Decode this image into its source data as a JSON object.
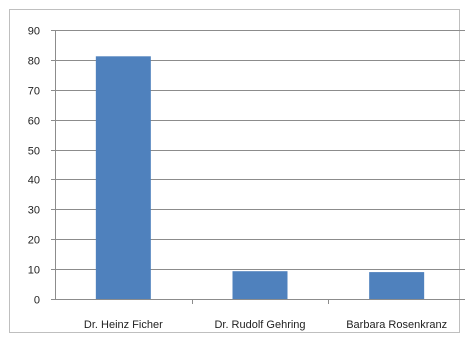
{
  "chart_data": {
    "type": "bar",
    "categories": [
      "Dr. Heinz Ficher",
      "Dr. Rudolf Gehring",
      "Barbara Rosenkranz"
    ],
    "series": [
      {
        "values": [
          81.2,
          9.3,
          9.0
        ]
      }
    ],
    "title": "",
    "xlabel": "",
    "ylabel": "",
    "ylim": [
      0,
      90
    ],
    "yticks": [
      "0",
      "10",
      "20",
      "30",
      "40",
      "50",
      "60",
      "70",
      "80",
      "90"
    ],
    "grid": true,
    "legend": "none",
    "bar_color": "#4f81bd",
    "grid_color": "#8c8c8c"
  }
}
